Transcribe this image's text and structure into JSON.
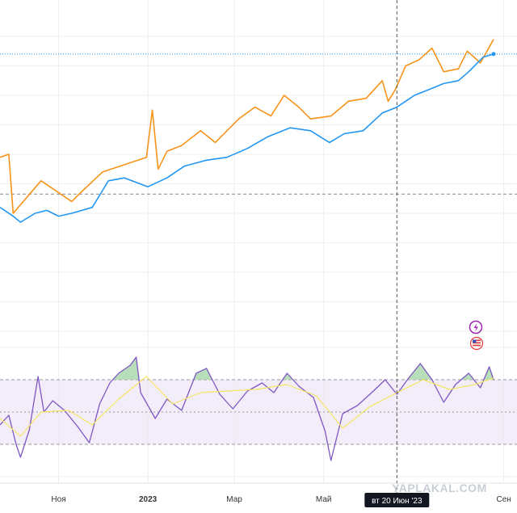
{
  "colors": {
    "price_series": "#f7931a",
    "index_series": "#2196f3",
    "oscillator": "#7e57c2",
    "signal": "#f5e663",
    "oscillator_band": "#ede7f6",
    "overbought_fill": "#a5d6a7",
    "grid": "#eeeeee",
    "crosshair": "#555555",
    "crosshair_tag_bg": "#131722",
    "dashed_level": "#888888",
    "icon_flash": "#9c27b0",
    "icon_flag": "#e53935"
  },
  "icons": {
    "event_flash": "lightning-icon",
    "event_flag": "us-flag-icon"
  },
  "x_axis": {
    "labels": [
      {
        "text": "Ноя",
        "bold": false
      },
      {
        "text": "2023",
        "bold": true
      },
      {
        "text": "Мар",
        "bold": false
      },
      {
        "text": "Май",
        "bold": false
      },
      {
        "text": "Сен",
        "bold": false
      }
    ]
  },
  "crosshair": {
    "date_label": "вт 20 Июн '23"
  },
  "watermark": "YAPLAKAL.COM",
  "chart_data": {
    "type": "line",
    "x_domain": [
      "2022-09-22",
      "2023-09-10"
    ],
    "x_tick_dates": [
      "2022-11-01",
      "2023-01-01",
      "2023-03-01",
      "2023-05-01",
      "2023-09-01"
    ],
    "crosshair_date": "2023-06-20",
    "grid": true,
    "main_pane": {
      "price_scale_range": [
        0,
        100
      ],
      "reference_levels": [
        46.5,
        80.5
      ],
      "series": [
        {
          "color": "#f7931a",
          "points": [
            [
              "2022-09-22",
              59
            ],
            [
              "2022-09-28",
              60
            ],
            [
              "2022-10-01",
              40
            ],
            [
              "2022-10-20",
              51
            ],
            [
              "2022-11-10",
              44
            ],
            [
              "2022-11-16",
              47
            ],
            [
              "2022-12-01",
              54
            ],
            [
              "2022-12-31",
              59
            ],
            [
              "2023-01-04",
              75
            ],
            [
              "2023-01-08",
              55
            ],
            [
              "2023-01-14",
              61
            ],
            [
              "2023-01-24",
              63
            ],
            [
              "2023-02-06",
              68
            ],
            [
              "2023-02-16",
              64
            ],
            [
              "2023-03-04",
              72
            ],
            [
              "2023-03-15",
              76
            ],
            [
              "2023-03-26",
              73
            ],
            [
              "2023-04-04",
              80
            ],
            [
              "2023-04-14",
              76
            ],
            [
              "2023-04-22",
              72
            ],
            [
              "2023-05-06",
              73
            ],
            [
              "2023-05-18",
              78
            ],
            [
              "2023-05-30",
              79
            ],
            [
              "2023-06-10",
              85
            ],
            [
              "2023-06-14",
              78
            ],
            [
              "2023-06-19",
              82
            ],
            [
              "2023-06-26",
              90
            ],
            [
              "2023-07-05",
              92
            ],
            [
              "2023-07-14",
              96
            ],
            [
              "2023-07-22",
              88
            ],
            [
              "2023-08-01",
              89
            ],
            [
              "2023-08-07",
              95
            ],
            [
              "2023-08-16",
              91
            ],
            [
              "2023-08-25",
              99
            ]
          ]
        },
        {
          "color": "#2196f3",
          "points": [
            [
              "2022-09-22",
              42
            ],
            [
              "2022-10-01",
              39
            ],
            [
              "2022-10-06",
              37
            ],
            [
              "2022-10-16",
              40
            ],
            [
              "2022-10-24",
              41
            ],
            [
              "2022-11-01",
              39
            ],
            [
              "2022-11-10",
              40
            ],
            [
              "2022-11-24",
              42
            ],
            [
              "2022-12-05",
              51
            ],
            [
              "2022-12-16",
              52
            ],
            [
              "2023-01-01",
              49
            ],
            [
              "2023-01-14",
              52
            ],
            [
              "2023-01-26",
              56
            ],
            [
              "2023-02-10",
              58
            ],
            [
              "2023-02-24",
              59
            ],
            [
              "2023-03-10",
              62
            ],
            [
              "2023-03-24",
              66
            ],
            [
              "2023-04-08",
              69
            ],
            [
              "2023-04-22",
              68
            ],
            [
              "2023-05-05",
              64
            ],
            [
              "2023-05-15",
              67
            ],
            [
              "2023-05-28",
              68
            ],
            [
              "2023-06-10",
              74
            ],
            [
              "2023-06-20",
              76
            ],
            [
              "2023-07-02",
              80
            ],
            [
              "2023-07-12",
              82
            ],
            [
              "2023-07-22",
              84
            ],
            [
              "2023-08-01",
              85
            ],
            [
              "2023-08-08",
              88
            ],
            [
              "2023-08-18",
              93
            ],
            [
              "2023-08-25",
              94
            ]
          ]
        }
      ]
    },
    "oscillator_pane": {
      "range": [
        0,
        100
      ],
      "band": [
        30,
        70
      ],
      "levels": [
        30,
        50,
        70
      ],
      "series": [
        {
          "color": "#7e57c2",
          "points": [
            [
              "2022-09-22",
              42
            ],
            [
              "2022-09-28",
              48
            ],
            [
              "2022-10-03",
              30
            ],
            [
              "2022-10-06",
              22
            ],
            [
              "2022-10-12",
              39
            ],
            [
              "2022-10-18",
              72
            ],
            [
              "2022-10-22",
              50
            ],
            [
              "2022-10-28",
              57
            ],
            [
              "2022-11-05",
              51
            ],
            [
              "2022-11-14",
              41
            ],
            [
              "2022-11-22",
              31
            ],
            [
              "2022-11-29",
              55
            ],
            [
              "2022-12-06",
              68
            ],
            [
              "2022-12-12",
              74
            ],
            [
              "2022-12-20",
              79
            ],
            [
              "2022-12-24",
              84
            ],
            [
              "2022-12-27",
              62
            ],
            [
              "2023-01-06",
              46
            ],
            [
              "2023-01-14",
              58
            ],
            [
              "2023-01-24",
              51
            ],
            [
              "2023-02-03",
              74
            ],
            [
              "2023-02-10",
              77
            ],
            [
              "2023-02-19",
              61
            ],
            [
              "2023-02-28",
              52
            ],
            [
              "2023-03-10",
              63
            ],
            [
              "2023-03-20",
              68
            ],
            [
              "2023-03-28",
              62
            ],
            [
              "2023-04-06",
              74
            ],
            [
              "2023-04-14",
              66
            ],
            [
              "2023-04-24",
              59
            ],
            [
              "2023-05-02",
              38
            ],
            [
              "2023-05-06",
              20
            ],
            [
              "2023-05-14",
              49
            ],
            [
              "2023-05-24",
              54
            ],
            [
              "2023-06-04",
              63
            ],
            [
              "2023-06-12",
              70
            ],
            [
              "2023-06-20",
              61
            ],
            [
              "2023-06-28",
              71
            ],
            [
              "2023-07-06",
              80
            ],
            [
              "2023-07-14",
              70
            ],
            [
              "2023-07-22",
              56
            ],
            [
              "2023-07-30",
              67
            ],
            [
              "2023-08-08",
              74
            ],
            [
              "2023-08-16",
              65
            ],
            [
              "2023-08-22",
              78
            ],
            [
              "2023-08-25",
              70
            ]
          ]
        },
        {
          "color": "#f5e663",
          "points": [
            [
              "2022-09-22",
              46
            ],
            [
              "2022-10-06",
              35
            ],
            [
              "2022-10-20",
              50
            ],
            [
              "2022-11-08",
              51
            ],
            [
              "2022-11-24",
              42
            ],
            [
              "2022-12-12",
              58
            ],
            [
              "2022-12-31",
              72
            ],
            [
              "2023-01-18",
              55
            ],
            [
              "2023-02-06",
              62
            ],
            [
              "2023-02-24",
              63
            ],
            [
              "2023-03-16",
              64
            ],
            [
              "2023-04-06",
              67
            ],
            [
              "2023-04-26",
              60
            ],
            [
              "2023-05-14",
              40
            ],
            [
              "2023-06-01",
              53
            ],
            [
              "2023-06-20",
              62
            ],
            [
              "2023-07-08",
              70
            ],
            [
              "2023-07-26",
              64
            ],
            [
              "2023-08-12",
              67
            ],
            [
              "2023-08-25",
              71
            ]
          ]
        }
      ]
    }
  }
}
